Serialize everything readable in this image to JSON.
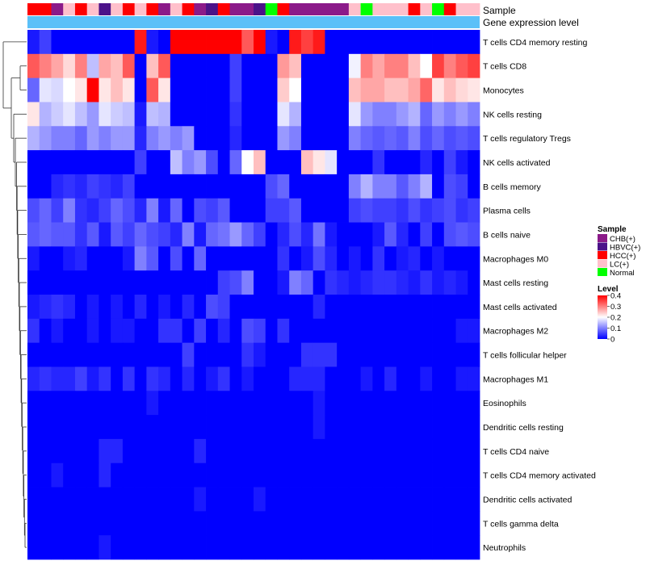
{
  "chart_data": {
    "type": "heatmap",
    "annotation_labels": [
      "Sample",
      "Gene expression level"
    ],
    "legend": {
      "sample_title": "Sample",
      "sample_groups": [
        {
          "label": "CHB(+)",
          "color": "#8B1A89"
        },
        {
          "label": "HBVC(+)",
          "color": "#4B1289"
        },
        {
          "label": "HCC(+)",
          "color": "#FF0000"
        },
        {
          "label": "LC(+)",
          "color": "#FFC0CB"
        },
        {
          "label": "Normal",
          "color": "#00FF00"
        }
      ],
      "level_title": "Level",
      "level_ticks": [
        "0.4",
        "0.3",
        "0.2",
        "0.1",
        "0"
      ],
      "level_range": [
        0,
        0.4
      ],
      "level_colors": [
        "#0000FF",
        "#FFFFFF",
        "#FF0000"
      ]
    },
    "gene_expression_color": "#5BC0F8",
    "samples": [
      "HCC(+)",
      "HCC(+)",
      "CHB(+)",
      "LC(+)",
      "HCC(+)",
      "LC(+)",
      "HBVC(+)",
      "LC(+)",
      "HCC(+)",
      "LC(+)",
      "HCC(+)",
      "CHB(+)",
      "LC(+)",
      "HCC(+)",
      "CHB(+)",
      "HBVC(+)",
      "HCC(+)",
      "CHB(+)",
      "CHB(+)",
      "HBVC(+)",
      "Normal",
      "HCC(+)",
      "CHB(+)",
      "CHB(+)",
      "CHB(+)",
      "CHB(+)",
      "CHB(+)",
      "LC(+)",
      "Normal",
      "LC(+)",
      "LC(+)",
      "LC(+)",
      "HCC(+)",
      "LC(+)",
      "Normal",
      "HCC(+)",
      "LC(+)",
      "LC(+)"
    ],
    "rows": [
      "T cells CD4 memory resting",
      "T cells CD8",
      "Monocytes",
      "NK cells resting",
      "T cells regulatory  Tregs",
      "NK cells activated",
      "B cells memory",
      "Plasma cells",
      "B cells naive",
      "Macrophages M0",
      "Mast cells resting",
      "Mast cells activated",
      "Macrophages M2",
      "T cells follicular helper",
      "Macrophages M1",
      "Eosinophils",
      "Dendritic cells resting",
      "T cells CD4 naive",
      "T cells CD4 memory activated",
      "Dendritic cells activated",
      "T cells gamma delta",
      "Neutrophils"
    ],
    "values": [
      [
        0.02,
        0.05,
        0.0,
        0.0,
        0.0,
        0.0,
        0.0,
        0.0,
        0.0,
        0.38,
        0.02,
        0.0,
        0.42,
        0.42,
        0.42,
        0.42,
        0.42,
        0.42,
        0.33,
        0.42,
        0.02,
        0.0,
        0.38,
        0.35,
        0.38,
        0.0,
        0.0,
        0.0,
        0.0,
        0.0,
        0.0,
        0.0,
        0.0,
        0.0,
        0.0,
        0.0,
        0.0,
        0.0
      ],
      [
        0.33,
        0.3,
        0.27,
        0.23,
        0.3,
        0.15,
        0.27,
        0.25,
        0.33,
        0.0,
        0.25,
        0.33,
        0.0,
        0.0,
        0.0,
        0.0,
        0.0,
        0.05,
        0.0,
        0.0,
        0.0,
        0.28,
        0.25,
        0.0,
        0.0,
        0.0,
        0.0,
        0.19,
        0.3,
        0.27,
        0.3,
        0.3,
        0.25,
        0.2,
        0.35,
        0.3,
        0.33,
        0.35
      ],
      [
        0.08,
        0.18,
        0.17,
        0.2,
        0.22,
        0.42,
        0.22,
        0.25,
        0.22,
        0.0,
        0.33,
        0.22,
        0.0,
        0.0,
        0.0,
        0.0,
        0.0,
        0.05,
        0.0,
        0.0,
        0.0,
        0.24,
        0.2,
        0.0,
        0.0,
        0.0,
        0.0,
        0.25,
        0.27,
        0.27,
        0.25,
        0.25,
        0.27,
        0.32,
        0.22,
        0.25,
        0.23,
        0.22
      ],
      [
        0.22,
        0.14,
        0.16,
        0.18,
        0.15,
        0.12,
        0.18,
        0.16,
        0.15,
        0.02,
        0.15,
        0.14,
        0.0,
        0.0,
        0.0,
        0.0,
        0.0,
        0.04,
        0.0,
        0.0,
        0.0,
        0.18,
        0.14,
        0.0,
        0.0,
        0.0,
        0.0,
        0.18,
        0.12,
        0.1,
        0.1,
        0.12,
        0.14,
        0.08,
        0.12,
        0.1,
        0.12,
        0.1
      ],
      [
        0.14,
        0.12,
        0.1,
        0.1,
        0.08,
        0.12,
        0.1,
        0.12,
        0.12,
        0.03,
        0.1,
        0.12,
        0.1,
        0.12,
        0.0,
        0.0,
        0.0,
        0.03,
        0.0,
        0.0,
        0.0,
        0.12,
        0.1,
        0.0,
        0.0,
        0.0,
        0.0,
        0.1,
        0.08,
        0.07,
        0.08,
        0.07,
        0.1,
        0.06,
        0.08,
        0.06,
        0.07,
        0.06
      ],
      [
        0.0,
        0.0,
        0.0,
        0.0,
        0.0,
        0.0,
        0.0,
        0.0,
        0.0,
        0.05,
        0.0,
        0.0,
        0.15,
        0.1,
        0.12,
        0.06,
        0.0,
        0.08,
        0.2,
        0.25,
        0.0,
        0.0,
        0.0,
        0.25,
        0.22,
        0.18,
        0.0,
        0.0,
        0.0,
        0.04,
        0.0,
        0.0,
        0.0,
        0.03,
        0.0,
        0.05,
        0.02,
        0.0
      ],
      [
        0.0,
        0.0,
        0.03,
        0.04,
        0.03,
        0.05,
        0.04,
        0.03,
        0.05,
        0.0,
        0.0,
        0.0,
        0.0,
        0.0,
        0.0,
        0.0,
        0.0,
        0.0,
        0.0,
        0.0,
        0.06,
        0.08,
        0.0,
        0.0,
        0.0,
        0.0,
        0.0,
        0.1,
        0.14,
        0.1,
        0.1,
        0.07,
        0.1,
        0.14,
        0.0,
        0.06,
        0.05,
        0.0
      ],
      [
        0.06,
        0.08,
        0.05,
        0.1,
        0.04,
        0.03,
        0.05,
        0.08,
        0.06,
        0.03,
        0.1,
        0.02,
        0.08,
        0.0,
        0.06,
        0.05,
        0.07,
        0.0,
        0.0,
        0.0,
        0.05,
        0.05,
        0.07,
        0.0,
        0.0,
        0.0,
        0.0,
        0.05,
        0.06,
        0.05,
        0.05,
        0.04,
        0.06,
        0.04,
        0.05,
        0.06,
        0.04,
        0.05
      ],
      [
        0.07,
        0.08,
        0.07,
        0.07,
        0.04,
        0.07,
        0.02,
        0.07,
        0.05,
        0.08,
        0.06,
        0.05,
        0.03,
        0.1,
        0.02,
        0.08,
        0.09,
        0.12,
        0.08,
        0.05,
        0.0,
        0.03,
        0.06,
        0.03,
        0.09,
        0.02,
        0.0,
        0.0,
        0.0,
        0.02,
        0.07,
        0.03,
        0.0,
        0.05,
        0.0,
        0.06,
        0.07,
        0.06
      ],
      [
        0.02,
        0.0,
        0.0,
        0.02,
        0.03,
        0.0,
        0.0,
        0.0,
        0.02,
        0.1,
        0.07,
        0.0,
        0.06,
        0.0,
        0.08,
        0.0,
        0.0,
        0.0,
        0.0,
        0.0,
        0.0,
        0.04,
        0.0,
        0.02,
        0.06,
        0.03,
        0.0,
        0.02,
        0.0,
        0.04,
        0.0,
        0.02,
        0.03,
        0.0,
        0.02,
        0.0,
        0.0,
        0.0
      ],
      [
        0.0,
        0.0,
        0.0,
        0.0,
        0.0,
        0.0,
        0.0,
        0.0,
        0.0,
        0.0,
        0.0,
        0.0,
        0.0,
        0.0,
        0.0,
        0.0,
        0.05,
        0.06,
        0.1,
        0.0,
        0.0,
        0.02,
        0.1,
        0.08,
        0.0,
        0.04,
        0.03,
        0.02,
        0.03,
        0.04,
        0.04,
        0.03,
        0.02,
        0.04,
        0.02,
        0.03,
        0.02,
        0.0
      ],
      [
        0.02,
        0.03,
        0.04,
        0.03,
        0.0,
        0.02,
        0.0,
        0.02,
        0.0,
        0.03,
        0.0,
        0.02,
        0.0,
        0.03,
        0.0,
        0.06,
        0.05,
        0.0,
        0.0,
        0.0,
        0.0,
        0.0,
        0.0,
        0.0,
        0.03,
        0.0,
        0.0,
        0.0,
        0.0,
        0.0,
        0.0,
        0.0,
        0.0,
        0.0,
        0.0,
        0.0,
        0.0,
        0.0
      ],
      [
        0.04,
        0.0,
        0.02,
        0.0,
        0.0,
        0.02,
        0.0,
        0.02,
        0.02,
        0.0,
        0.0,
        0.04,
        0.04,
        0.0,
        0.05,
        0.0,
        0.03,
        0.0,
        0.06,
        0.05,
        0.0,
        0.04,
        0.0,
        0.0,
        0.0,
        0.0,
        0.0,
        0.0,
        0.0,
        0.0,
        0.0,
        0.0,
        0.0,
        0.0,
        0.0,
        0.0,
        0.02,
        0.02
      ],
      [
        0.0,
        0.0,
        0.0,
        0.0,
        0.0,
        0.0,
        0.0,
        0.0,
        0.0,
        0.0,
        0.0,
        0.0,
        0.0,
        0.05,
        0.0,
        0.0,
        0.0,
        0.0,
        0.04,
        0.02,
        0.0,
        0.0,
        0.0,
        0.04,
        0.04,
        0.04,
        0.0,
        0.0,
        0.0,
        0.0,
        0.0,
        0.0,
        0.0,
        0.0,
        0.0,
        0.0,
        0.0,
        0.0
      ],
      [
        0.03,
        0.04,
        0.03,
        0.03,
        0.05,
        0.02,
        0.04,
        0.0,
        0.04,
        0.0,
        0.04,
        0.03,
        0.0,
        0.03,
        0.0,
        0.02,
        0.04,
        0.0,
        0.02,
        0.0,
        0.0,
        0.0,
        0.03,
        0.03,
        0.03,
        0.0,
        0.0,
        0.0,
        0.02,
        0.0,
        0.03,
        0.0,
        0.0,
        0.02,
        0.0,
        0.0,
        0.02,
        0.02
      ],
      [
        0.0,
        0.0,
        0.0,
        0.0,
        0.0,
        0.0,
        0.0,
        0.0,
        0.0,
        0.0,
        0.02,
        0.0,
        0.0,
        0.0,
        0.0,
        0.0,
        0.0,
        0.0,
        0.0,
        0.0,
        0.0,
        0.0,
        0.0,
        0.0,
        0.02,
        0.0,
        0.0,
        0.0,
        0.0,
        0.0,
        0.0,
        0.0,
        0.0,
        0.0,
        0.0,
        0.0,
        0.0,
        0.0
      ],
      [
        0.0,
        0.0,
        0.0,
        0.0,
        0.0,
        0.0,
        0.0,
        0.0,
        0.0,
        0.0,
        0.0,
        0.0,
        0.0,
        0.0,
        0.0,
        0.0,
        0.0,
        0.0,
        0.0,
        0.0,
        0.0,
        0.0,
        0.0,
        0.0,
        0.02,
        0.0,
        0.0,
        0.0,
        0.0,
        0.0,
        0.0,
        0.0,
        0.0,
        0.0,
        0.0,
        0.0,
        0.0,
        0.0
      ],
      [
        0.0,
        0.0,
        0.0,
        0.0,
        0.0,
        0.0,
        0.03,
        0.03,
        0.0,
        0.0,
        0.0,
        0.0,
        0.0,
        0.0,
        0.03,
        0.0,
        0.0,
        0.0,
        0.0,
        0.0,
        0.0,
        0.0,
        0.0,
        0.0,
        0.0,
        0.0,
        0.0,
        0.0,
        0.0,
        0.0,
        0.0,
        0.0,
        0.0,
        0.0,
        0.0,
        0.0,
        0.0,
        0.0
      ],
      [
        0.0,
        0.0,
        0.02,
        0.0,
        0.0,
        0.0,
        0.03,
        0.0,
        0.0,
        0.0,
        0.0,
        0.0,
        0.0,
        0.0,
        0.0,
        0.0,
        0.0,
        0.0,
        0.0,
        0.0,
        0.0,
        0.0,
        0.0,
        0.0,
        0.0,
        0.0,
        0.0,
        0.0,
        0.0,
        0.0,
        0.0,
        0.0,
        0.0,
        0.0,
        0.0,
        0.0,
        0.0,
        0.0
      ],
      [
        0.0,
        0.0,
        0.0,
        0.0,
        0.0,
        0.0,
        0.0,
        0.0,
        0.0,
        0.0,
        0.0,
        0.0,
        0.0,
        0.0,
        0.02,
        0.0,
        0.0,
        0.0,
        0.0,
        0.02,
        0.0,
        0.0,
        0.0,
        0.0,
        0.0,
        0.0,
        0.0,
        0.0,
        0.0,
        0.0,
        0.0,
        0.0,
        0.0,
        0.0,
        0.0,
        0.0,
        0.0,
        0.0
      ],
      [
        0.0,
        0.0,
        0.0,
        0.0,
        0.0,
        0.0,
        0.0,
        0.0,
        0.0,
        0.0,
        0.0,
        0.0,
        0.0,
        0.0,
        0.0,
        0.0,
        0.0,
        0.0,
        0.0,
        0.0,
        0.0,
        0.0,
        0.0,
        0.0,
        0.0,
        0.0,
        0.0,
        0.0,
        0.0,
        0.0,
        0.0,
        0.0,
        0.0,
        0.0,
        0.0,
        0.0,
        0.0,
        0.0
      ],
      [
        0.0,
        0.0,
        0.0,
        0.0,
        0.0,
        0.0,
        0.02,
        0.0,
        0.0,
        0.0,
        0.0,
        0.0,
        0.0,
        0.0,
        0.0,
        0.0,
        0.0,
        0.0,
        0.0,
        0.0,
        0.0,
        0.0,
        0.0,
        0.0,
        0.0,
        0.0,
        0.0,
        0.0,
        0.0,
        0.0,
        0.0,
        0.0,
        0.0,
        0.0,
        0.0,
        0.0,
        0.0,
        0.0
      ]
    ]
  }
}
